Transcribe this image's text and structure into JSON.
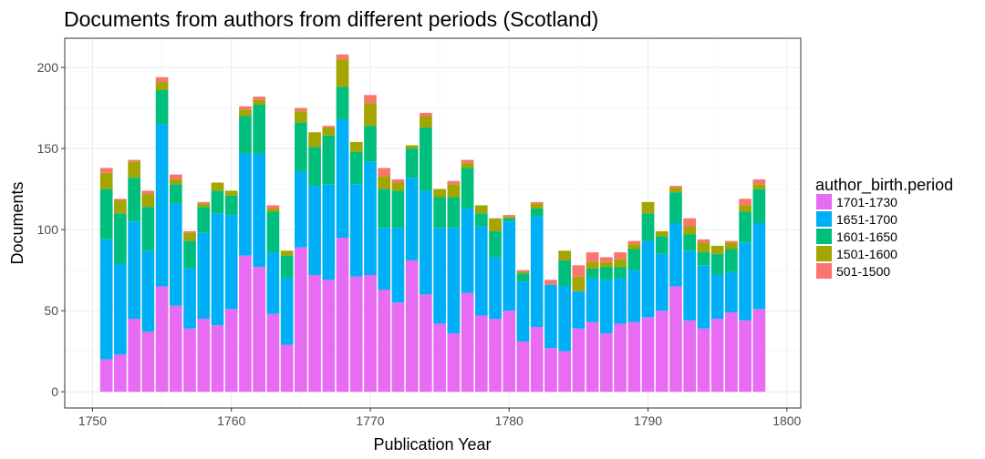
{
  "chart_data": {
    "type": "bar",
    "stacked": true,
    "title": "Documents from authors from different periods (Scotland)",
    "xlabel": "Publication Year",
    "ylabel": "Documents",
    "xlim": [
      1748,
      1801
    ],
    "ylim": [
      -10,
      218
    ],
    "xticks": [
      1750,
      1760,
      1770,
      1780,
      1790,
      1800
    ],
    "yticks": [
      0,
      50,
      100,
      150,
      200
    ],
    "grid": true,
    "legend": {
      "title": "author_birth.period",
      "position": "right",
      "entries": [
        "1701-1730",
        "1651-1700",
        "1601-1650",
        "1501-1600",
        "501-1500"
      ]
    },
    "x": [
      1751,
      1752,
      1753,
      1754,
      1755,
      1756,
      1757,
      1758,
      1759,
      1760,
      1761,
      1762,
      1763,
      1764,
      1765,
      1766,
      1767,
      1768,
      1769,
      1770,
      1771,
      1772,
      1773,
      1774,
      1775,
      1776,
      1777,
      1778,
      1779,
      1780,
      1781,
      1782,
      1783,
      1784,
      1785,
      1786,
      1787,
      1788,
      1789,
      1790,
      1791,
      1792,
      1793,
      1794,
      1795,
      1796,
      1797,
      1798
    ],
    "series": [
      {
        "name": "1701-1730",
        "color": "#E76BF3",
        "values": [
          20,
          23,
          45,
          37,
          65,
          53,
          39,
          45,
          41,
          51,
          84,
          77,
          48,
          29,
          89,
          72,
          69,
          95,
          71,
          72,
          63,
          55,
          81,
          60,
          42,
          36,
          61,
          47,
          45,
          50,
          31,
          40,
          27,
          25,
          39,
          43,
          36,
          42,
          43,
          46,
          50,
          65,
          44,
          39,
          45,
          49,
          44,
          51
        ]
      },
      {
        "name": "1651-1700",
        "color": "#00B0F6",
        "values": [
          74,
          56,
          60,
          50,
          100,
          63,
          37,
          53,
          69,
          58,
          63,
          70,
          38,
          41,
          47,
          55,
          59,
          73,
          57,
          70,
          38,
          46,
          51,
          64,
          59,
          65,
          52,
          55,
          38,
          55,
          37,
          68,
          39,
          40,
          23,
          27,
          33,
          28,
          32,
          47,
          35,
          39,
          43,
          39,
          27,
          25,
          48,
          53
        ]
      },
      {
        "name": "1601-1650",
        "color": "#00BF7D",
        "values": [
          31,
          31,
          27,
          27,
          21,
          12,
          17,
          16,
          14,
          12,
          23,
          30,
          25,
          14,
          30,
          24,
          30,
          20,
          20,
          22,
          24,
          23,
          18,
          39,
          19,
          19,
          25,
          8,
          16,
          2,
          5,
          5,
          0,
          16,
          0,
          6,
          8,
          7,
          13,
          17,
          11,
          19,
          10,
          8,
          13,
          14,
          19,
          21
        ]
      },
      {
        "name": "1501-1600",
        "color": "#A3A500",
        "values": [
          10,
          8,
          10,
          8,
          5,
          3,
          5,
          2,
          5,
          3,
          4,
          3,
          2,
          3,
          7,
          9,
          5,
          17,
          6,
          14,
          8,
          5,
          2,
          7,
          5,
          8,
          3,
          5,
          8,
          1,
          1,
          3,
          0,
          6,
          9,
          4,
          3,
          5,
          3,
          7,
          3,
          3,
          5,
          6,
          5,
          4,
          4,
          3
        ]
      },
      {
        "name": "501-1500",
        "color": "#F8766D",
        "values": [
          3,
          1,
          1,
          2,
          3,
          3,
          1,
          1,
          0,
          0,
          2,
          2,
          2,
          0,
          2,
          0,
          1,
          3,
          0,
          5,
          5,
          2,
          0,
          2,
          0,
          2,
          2,
          0,
          0,
          1,
          1,
          1,
          3,
          0,
          7,
          6,
          3,
          4,
          2,
          0,
          0,
          1,
          5,
          2,
          0,
          1,
          4,
          3
        ]
      }
    ]
  }
}
